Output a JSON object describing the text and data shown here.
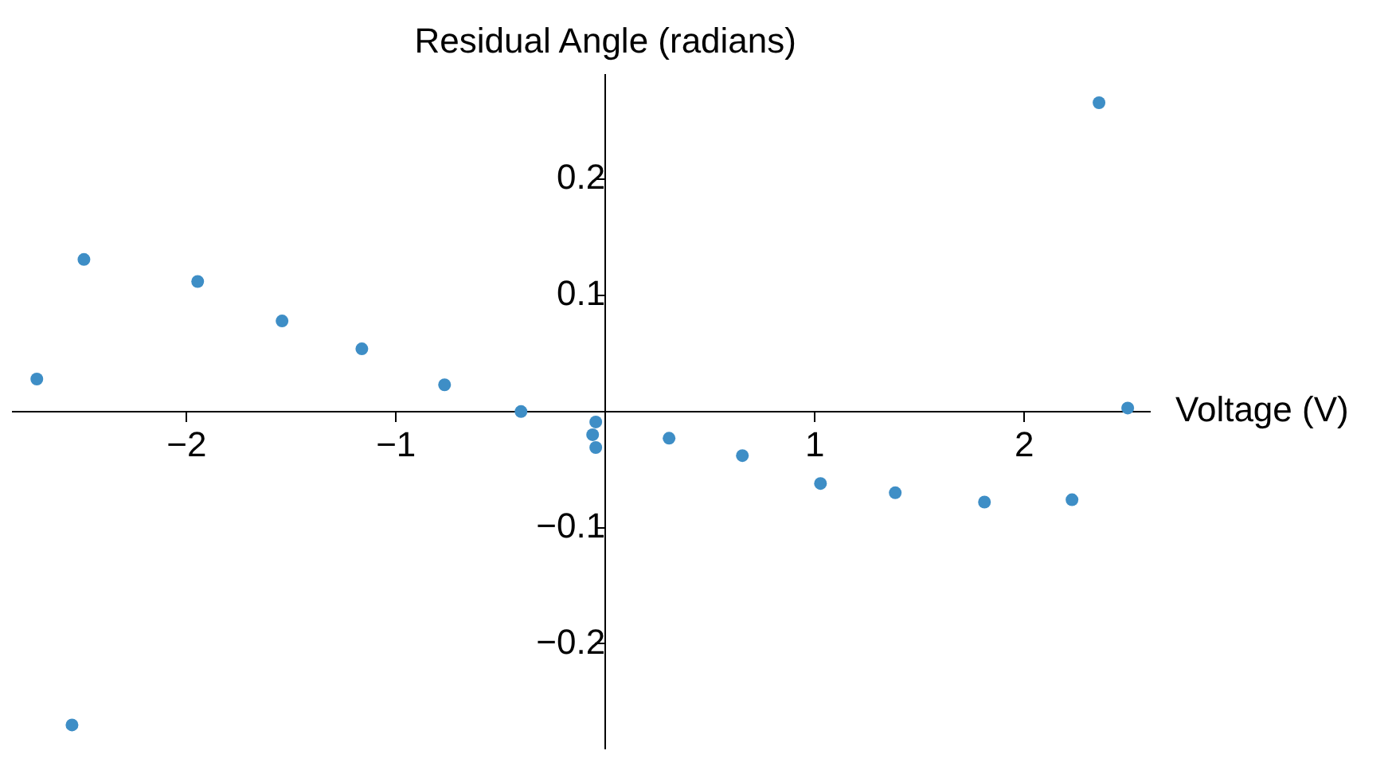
{
  "chart_data": {
    "type": "scatter",
    "xlabel": "Voltage (V)",
    "ylabel": "Residual Angle (radians)",
    "x": [
      -2.715,
      -2.49,
      -2.547,
      -1.947,
      -1.544,
      -1.163,
      -0.768,
      -0.403,
      -0.046,
      -0.061,
      -0.046,
      0.304,
      0.654,
      1.027,
      1.384,
      1.81,
      2.228,
      2.357,
      2.494
    ],
    "series": [
      {
        "color": "#3e8ec6",
        "values": [
          0.028,
          0.131,
          -0.27,
          0.112,
          0.078,
          0.054,
          0.023,
          0.0,
          -0.009,
          -0.02,
          -0.031,
          -0.023,
          -0.038,
          -0.062,
          -0.07,
          -0.078,
          -0.076,
          0.266,
          0.003
        ]
      }
    ],
    "xlim": [
      -2.83,
      2.6
    ],
    "ylim": [
      -0.29,
      0.29
    ],
    "xticks": [
      {
        "value": -2,
        "label": "−2"
      },
      {
        "value": -1,
        "label": "−1"
      },
      1,
      2
    ],
    "yticks": [
      {
        "value": -0.2,
        "label": "−0.2"
      },
      {
        "value": -0.1,
        "label": "−0.1"
      },
      0.1,
      0.2
    ],
    "grid": false,
    "legend": false,
    "marker": "circle"
  }
}
